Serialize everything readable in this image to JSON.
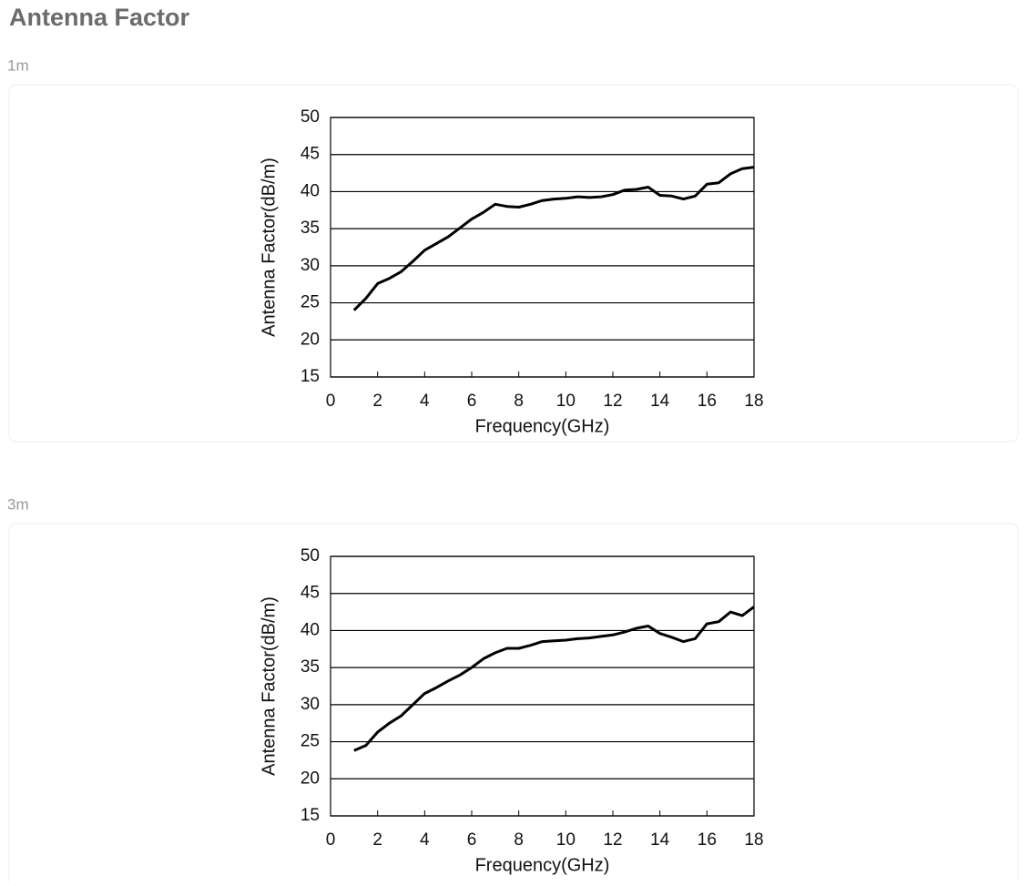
{
  "page_title": "Antenna Factor",
  "chart_data": [
    {
      "type": "line",
      "section_label": "1m",
      "xlabel": "Frequency(GHz)",
      "ylabel": "Antenna Factor(dB/m)",
      "x": [
        1,
        1.5,
        2,
        2.5,
        3,
        3.5,
        4,
        4.5,
        5,
        5.5,
        6,
        6.5,
        7,
        7.5,
        8,
        8.5,
        9,
        9.5,
        10,
        10.5,
        11,
        11.5,
        12,
        12.5,
        13,
        13.5,
        14,
        14.5,
        15,
        15.5,
        16,
        16.5,
        17,
        17.5,
        18
      ],
      "values": [
        24.0,
        25.6,
        27.6,
        28.3,
        29.2,
        30.6,
        32.1,
        33.0,
        33.9,
        35.1,
        36.3,
        37.2,
        38.3,
        38.0,
        37.9,
        38.3,
        38.8,
        39.0,
        39.1,
        39.3,
        39.2,
        39.3,
        39.6,
        40.2,
        40.3,
        40.6,
        39.5,
        39.4,
        39.0,
        39.4,
        41.0,
        41.2,
        42.4,
        43.1,
        43.3
      ],
      "color": "#000000",
      "xlim": [
        0,
        18
      ],
      "ylim": [
        15,
        50
      ],
      "xticks": [
        0,
        2,
        4,
        6,
        8,
        10,
        12,
        14,
        16,
        18
      ],
      "yticks": [
        15,
        20,
        25,
        30,
        35,
        40,
        45,
        50
      ],
      "grid": true
    },
    {
      "type": "line",
      "section_label": "3m",
      "xlabel": "Frequency(GHz)",
      "ylabel": "Antenna Factor(dB/m)",
      "x": [
        1,
        1.5,
        2,
        2.5,
        3,
        3.5,
        4,
        4.5,
        5,
        5.5,
        6,
        6.5,
        7,
        7.5,
        8,
        8.5,
        9,
        9.5,
        10,
        10.5,
        11,
        11.5,
        12,
        12.5,
        13,
        13.5,
        14,
        14.5,
        15,
        15.5,
        16,
        16.5,
        17,
        17.5,
        18
      ],
      "values": [
        23.8,
        24.5,
        26.3,
        27.5,
        28.5,
        30.0,
        31.5,
        32.3,
        33.2,
        34.0,
        35.0,
        36.2,
        37.0,
        37.6,
        37.6,
        38.0,
        38.5,
        38.6,
        38.7,
        38.9,
        39.0,
        39.2,
        39.4,
        39.8,
        40.3,
        40.6,
        39.6,
        39.1,
        38.5,
        38.9,
        40.9,
        41.2,
        42.5,
        42.0,
        43.2
      ],
      "color": "#000000",
      "xlim": [
        0,
        18
      ],
      "ylim": [
        15,
        50
      ],
      "xticks": [
        0,
        2,
        4,
        6,
        8,
        10,
        12,
        14,
        16,
        18
      ],
      "yticks": [
        15,
        20,
        25,
        30,
        35,
        40,
        45,
        50
      ],
      "grid": true
    }
  ]
}
